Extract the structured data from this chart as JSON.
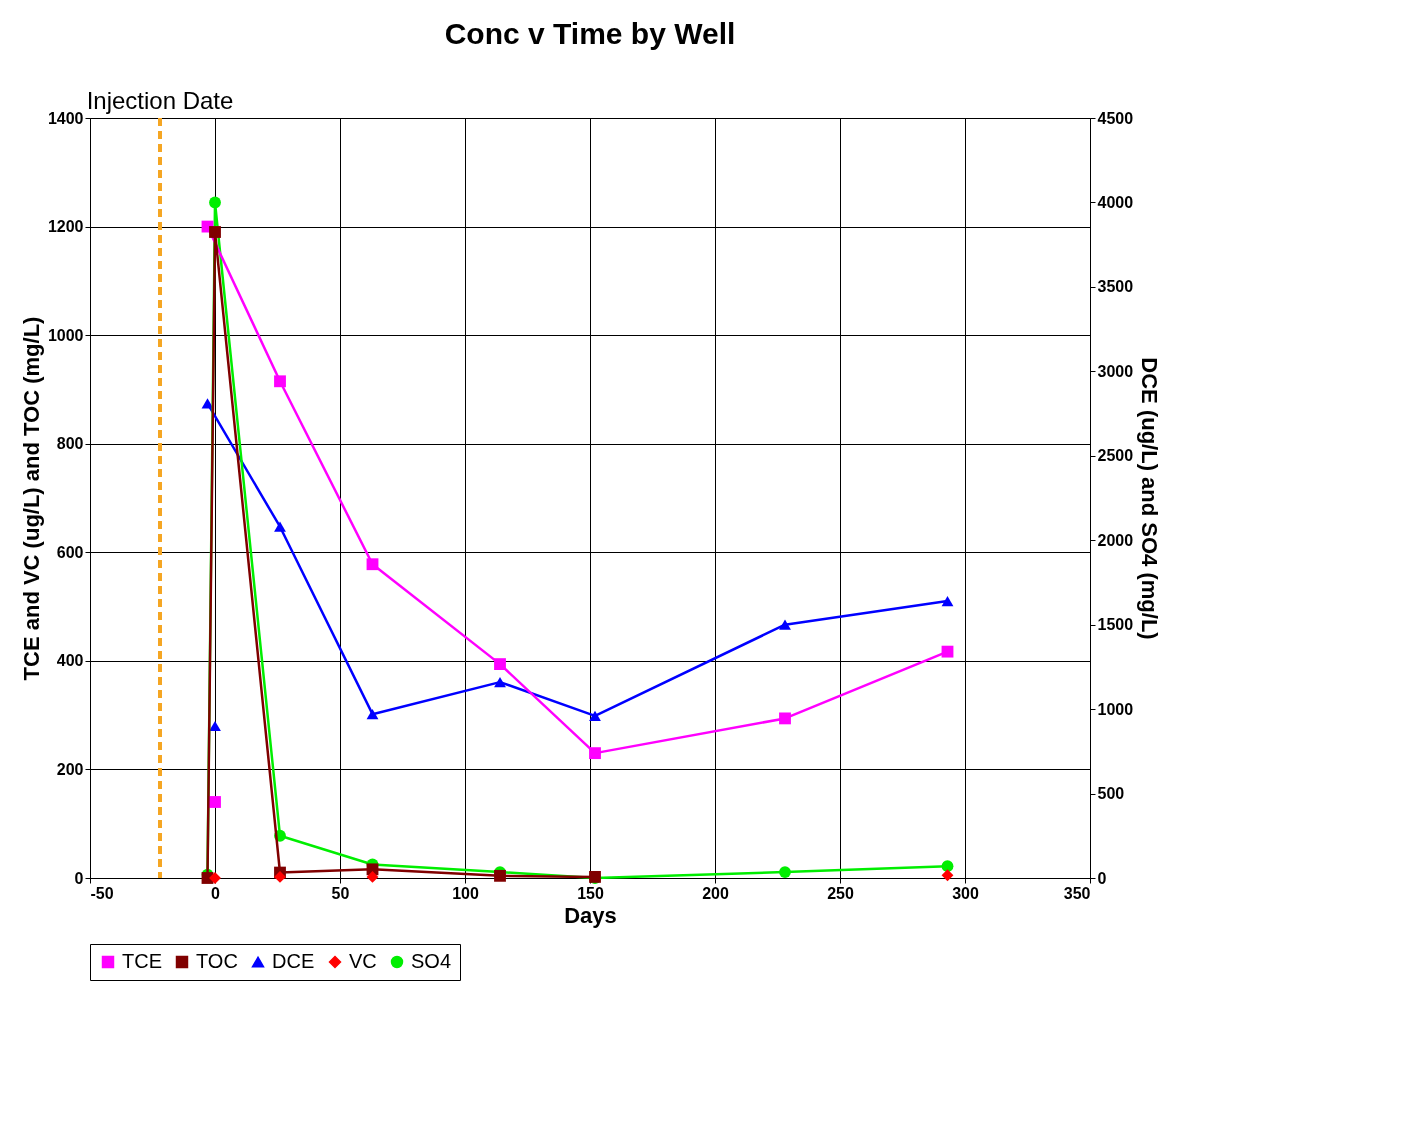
{
  "chart_data": {
    "type": "line",
    "title": "Conc v Time by Well",
    "xlabel": "Days",
    "ylabel": "TCE and VC (ug/L) and TOC (mg/L)",
    "y2label": "DCE (ug/L) and SO4 (mg/L)",
    "xlim": [
      -50,
      350
    ],
    "xticks": [
      -50,
      0,
      50,
      100,
      150,
      200,
      250,
      300,
      350
    ],
    "ylim": [
      0,
      1400
    ],
    "yticks": [
      0,
      200,
      400,
      600,
      800,
      1000,
      1200,
      1400
    ],
    "y2lim": [
      0,
      4500
    ],
    "y2ticks": [
      0,
      500,
      1000,
      1500,
      2000,
      2500,
      3000,
      3500,
      4000,
      4500
    ],
    "grid": true,
    "legend": "bottom",
    "ref_lines": [
      {
        "axis": "x",
        "value": -22,
        "label": "Injection Date",
        "color": "#f5a623",
        "line_style": "dashed"
      }
    ],
    "series": [
      {
        "name": "TCE",
        "color": "#ff00ff",
        "marker": "square",
        "x": [
          -3,
          26,
          63,
          114,
          152,
          228,
          293
        ],
        "values": [
          1200,
          915,
          578,
          394,
          230,
          294,
          417
        ]
      },
      {
        "type": "scatter",
        "color": "#ff00ff",
        "marker": "square",
        "x": [
          0
        ],
        "values": [
          140
        ]
      },
      {
        "name": "TOC",
        "color": "#800000",
        "marker": "square",
        "x": [
          -3,
          0,
          26,
          63,
          114,
          152
        ],
        "values": [
          0,
          1190,
          10,
          16,
          4,
          2
        ]
      },
      {
        "name": "DCE",
        "color": "#0000ff",
        "marker": "triangle",
        "axis": "y2",
        "x": [
          -3,
          26,
          63,
          114,
          152,
          228,
          293
        ],
        "values": [
          2810,
          2080,
          970,
          1160,
          960,
          1500,
          1640
        ]
      },
      {
        "type": "scatter",
        "color": "#0000ff",
        "marker": "triangle",
        "axis": "y2",
        "x": [
          0
        ],
        "values": [
          900
        ]
      },
      {
        "name": "VC",
        "type": "scatter",
        "color": "#ff0000",
        "marker": "diamond",
        "x": [
          0,
          26,
          63,
          293
        ],
        "values": [
          0,
          2,
          2,
          5
        ]
      },
      {
        "name": "SO4",
        "color": "#00ee00",
        "marker": "circle",
        "axis": "y2",
        "x": [
          -3,
          0,
          26,
          63,
          114,
          152,
          228,
          293
        ],
        "values": [
          20,
          4000,
          250,
          80,
          35,
          0,
          35,
          70
        ]
      }
    ]
  }
}
